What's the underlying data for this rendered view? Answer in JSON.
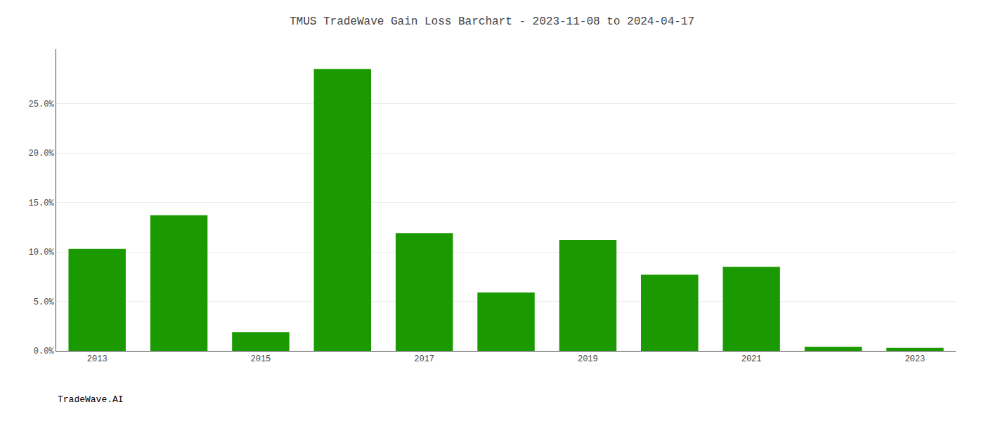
{
  "chart_data": {
    "type": "bar",
    "title": "TMUS TradeWave Gain Loss Barchart - 2023-11-08 to 2024-04-17",
    "annotations": [
      "TradeWave.AI"
    ],
    "categories": [
      "2013",
      null,
      "2015",
      null,
      "2017",
      null,
      "2019",
      null,
      "2021",
      null,
      "2023"
    ],
    "values": [
      0.103,
      0.137,
      0.019,
      0.285,
      0.119,
      0.059,
      0.112,
      0.077,
      0.085,
      0.004,
      0.003
    ],
    "color": "#1a9a00",
    "ylim": [
      0,
      0.305
    ],
    "yticks": [
      {
        "value": 0.0,
        "label": "0.0%"
      },
      {
        "value": 0.05,
        "label": "5.0%"
      },
      {
        "value": 0.1,
        "label": "10.0%"
      },
      {
        "value": 0.15,
        "label": "15.0%"
      },
      {
        "value": 0.2,
        "label": "20.0%"
      },
      {
        "value": 0.25,
        "label": "25.0%"
      }
    ],
    "grid": true
  }
}
